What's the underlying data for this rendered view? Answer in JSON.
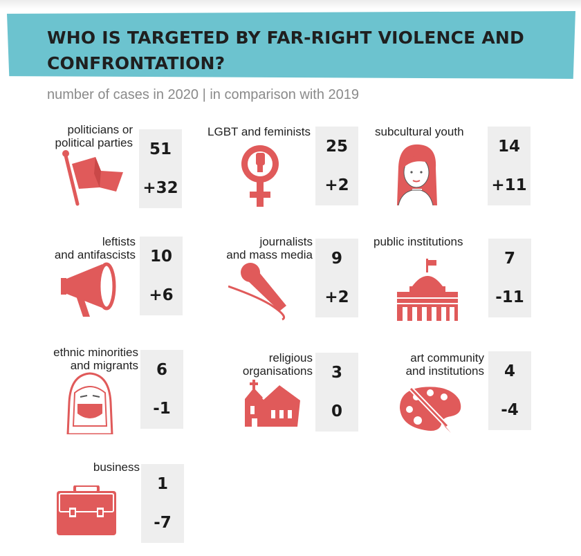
{
  "header": {
    "title": "WHO IS TARGETED BY FAR-RIGHT VIOLENCE AND CONFRONTATION?",
    "subtitle": "number of cases in 2020 | in comparison with 2019"
  },
  "colors": {
    "banner": "#6cc3cf",
    "icon": "#e05a5a",
    "box": "#eeeeee"
  },
  "groups": [
    {
      "label": "politicians or\npolitical parties",
      "count": "51",
      "change": "+32",
      "icon": "flag-icon"
    },
    {
      "label": "LGBT and feminists",
      "count": "25",
      "change": "+2",
      "icon": "feminist-fist-icon"
    },
    {
      "label": "subcultural youth",
      "count": "14",
      "change": "+11",
      "icon": "youth-person-icon"
    },
    {
      "label": "leftists\nand antifascists",
      "count": "10",
      "change": "+6",
      "icon": "megaphone-icon"
    },
    {
      "label": "journalists\nand mass media",
      "count": "9",
      "change": "+2",
      "icon": "microphone-icon"
    },
    {
      "label": "public institutions",
      "count": "7",
      "change": "-11",
      "icon": "capitol-building-icon"
    },
    {
      "label": "ethnic minorities\nand migrants",
      "count": "6",
      "change": "-1",
      "icon": "headscarf-woman-icon"
    },
    {
      "label": "religious\norganisations",
      "count": "3",
      "change": "0",
      "icon": "church-icon"
    },
    {
      "label": "art community\nand institutions",
      "count": "4",
      "change": "-4",
      "icon": "paint-palette-icon"
    },
    {
      "label": "business",
      "count": "1",
      "change": "-7",
      "icon": "briefcase-icon"
    }
  ]
}
